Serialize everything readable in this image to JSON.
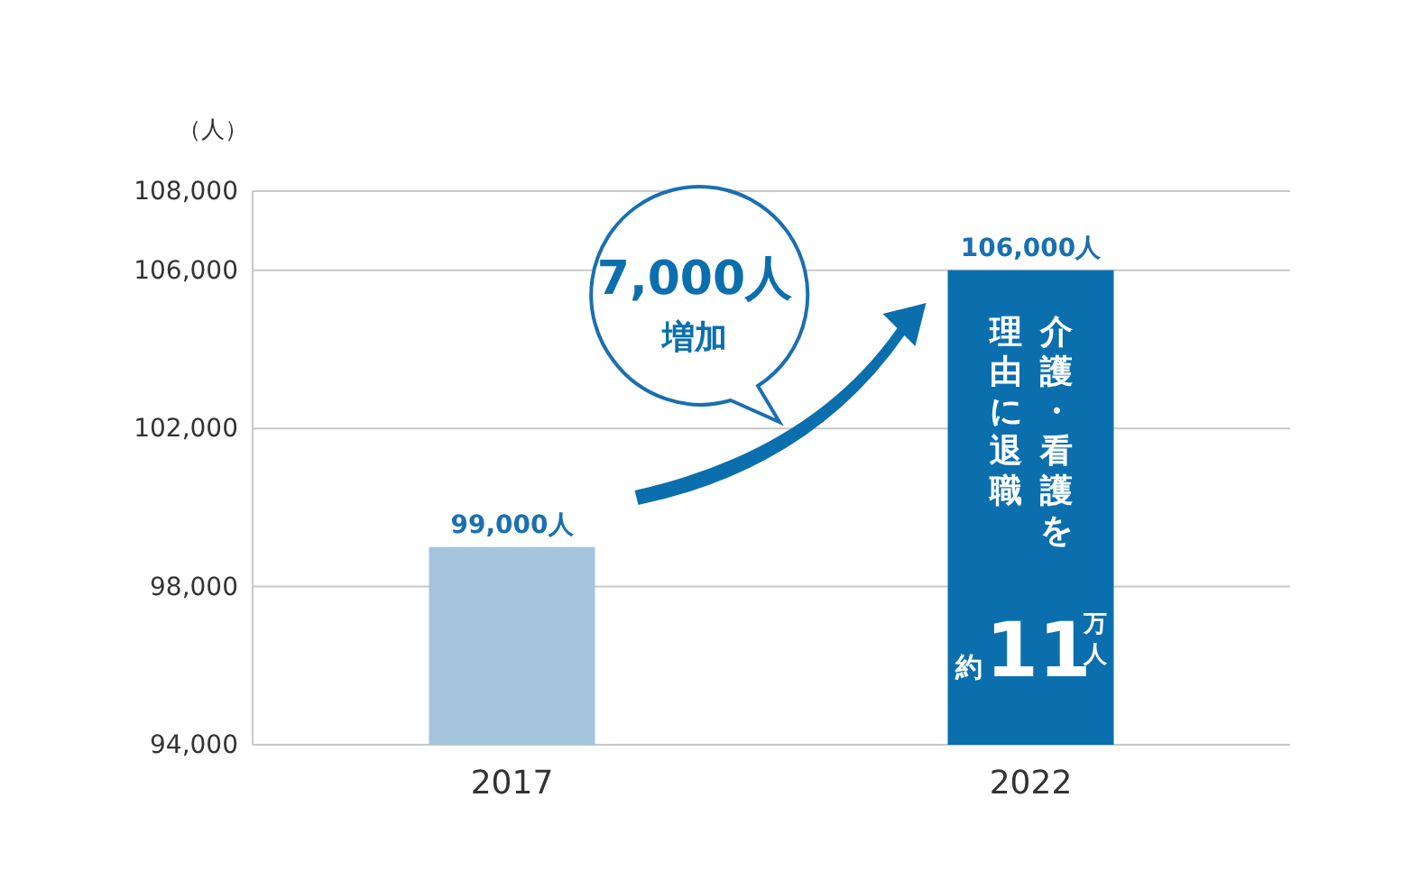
{
  "chart_data": {
    "type": "bar",
    "ylabel": "（人）",
    "categories": [
      "2017",
      "2022"
    ],
    "values": [
      99000,
      106000
    ],
    "colors": [
      "#a3c4dc",
      "#0b6fae"
    ],
    "value_labels": [
      "99,000人",
      "106,000人"
    ],
    "ylim": [
      94000,
      108000
    ],
    "yticks": [
      {
        "value": 94000,
        "label": "94,000"
      },
      {
        "value": 98000,
        "label": "98,000"
      },
      {
        "value": 102000,
        "label": "102,000"
      },
      {
        "value": 106000,
        "label": "106,000"
      },
      {
        "value": 108000,
        "label": "108,000"
      }
    ],
    "grid": "y",
    "annotations": [
      "7,000人",
      "増加",
      "介護・看護を",
      "理由に退職",
      "約11万人"
    ]
  }
}
